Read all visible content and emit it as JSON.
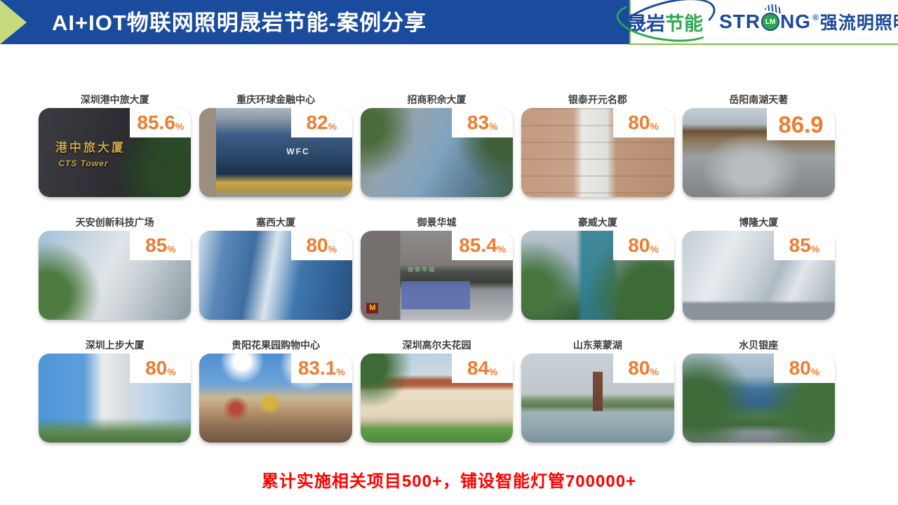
{
  "header": {
    "title": "AI+IOT物联网照明晟岩节能-案例分享",
    "logo": {
      "cn_blue": "晟岩",
      "cn_green": "节能",
      "en_left": "STR",
      "en_circle": "LM",
      "en_right": "NG",
      "reg": "®",
      "cn_right": "强流明照明"
    }
  },
  "cases": [
    {
      "name": "深圳港中旅大厦",
      "value": "85.6",
      "unit": "%",
      "photo_text_1": "港中旅大厦",
      "photo_text_2": "CTS Tower"
    },
    {
      "name": "重庆环球金融中心",
      "value": "82",
      "unit": "%",
      "photo_text_1": "WFC"
    },
    {
      "name": "招商积余大厦",
      "value": "83",
      "unit": "%"
    },
    {
      "name": "银泰开元名郡",
      "value": "80",
      "unit": "%"
    },
    {
      "name": "岳阳南湖天著",
      "value": "86.9",
      "unit": ""
    },
    {
      "name": "天安创新科技广场",
      "value": "85",
      "unit": "%"
    },
    {
      "name": "塞西大厦",
      "value": "80",
      "unit": "%"
    },
    {
      "name": "御景华城",
      "value": "85.4",
      "unit": "%",
      "photo_text_1": "御景华城",
      "photo_text_2": "M"
    },
    {
      "name": "豪威大厦",
      "value": "80",
      "unit": "%"
    },
    {
      "name": "博隆大厦",
      "value": "85",
      "unit": "%"
    },
    {
      "name": "深圳上步大厦",
      "value": "80",
      "unit": "%"
    },
    {
      "name": "贵阳花果园购物中心",
      "value": "83.1",
      "unit": "%"
    },
    {
      "name": "深圳高尔夫花园",
      "value": "84",
      "unit": "%"
    },
    {
      "name": "山东莱蒙湖",
      "value": "80",
      "unit": "%"
    },
    {
      "name": "水贝银座",
      "value": "80",
      "unit": "%"
    }
  ],
  "footer": {
    "summary": "累计实施相关项目500+，铺设智能灯管700000+"
  },
  "colors": {
    "header_blue": "#1A4B9D",
    "arrow_green": "#C6DB80",
    "panel_border_green": "#7FBF3F",
    "accent_orange": "#ED7D31",
    "footer_red": "#FF0000",
    "logo_blue": "#1B4A9B",
    "logo_green": "#2EA84E"
  }
}
